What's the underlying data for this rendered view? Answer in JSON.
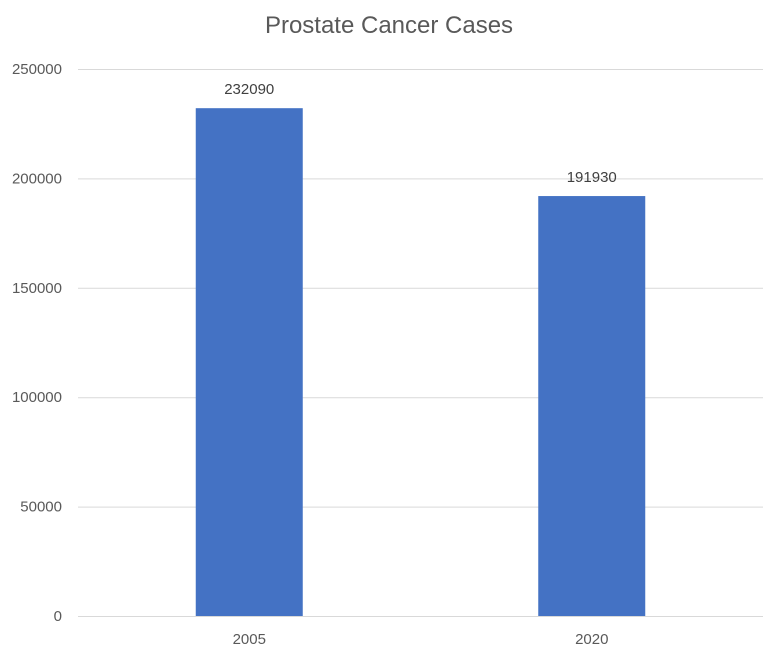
{
  "chart_data": {
    "type": "bar",
    "title": "Prostate Cancer Cases",
    "categories": [
      "2005",
      "2020"
    ],
    "values": [
      232090,
      191930
    ],
    "data_labels": [
      "232090",
      "191930"
    ],
    "ylim": [
      0,
      250000
    ],
    "yticks": [
      0,
      50000,
      100000,
      150000,
      200000,
      250000
    ],
    "ytick_labels": [
      "0",
      "50000",
      "100000",
      "150000",
      "200000",
      "250000"
    ],
    "xlabel": "",
    "ylabel": "",
    "grid": true,
    "legend": "none",
    "colors": {
      "bar": "#4472C4",
      "grid": "#D9D9D9",
      "axis_text": "#595959",
      "data_label": "#404040",
      "title": "#595959"
    }
  }
}
